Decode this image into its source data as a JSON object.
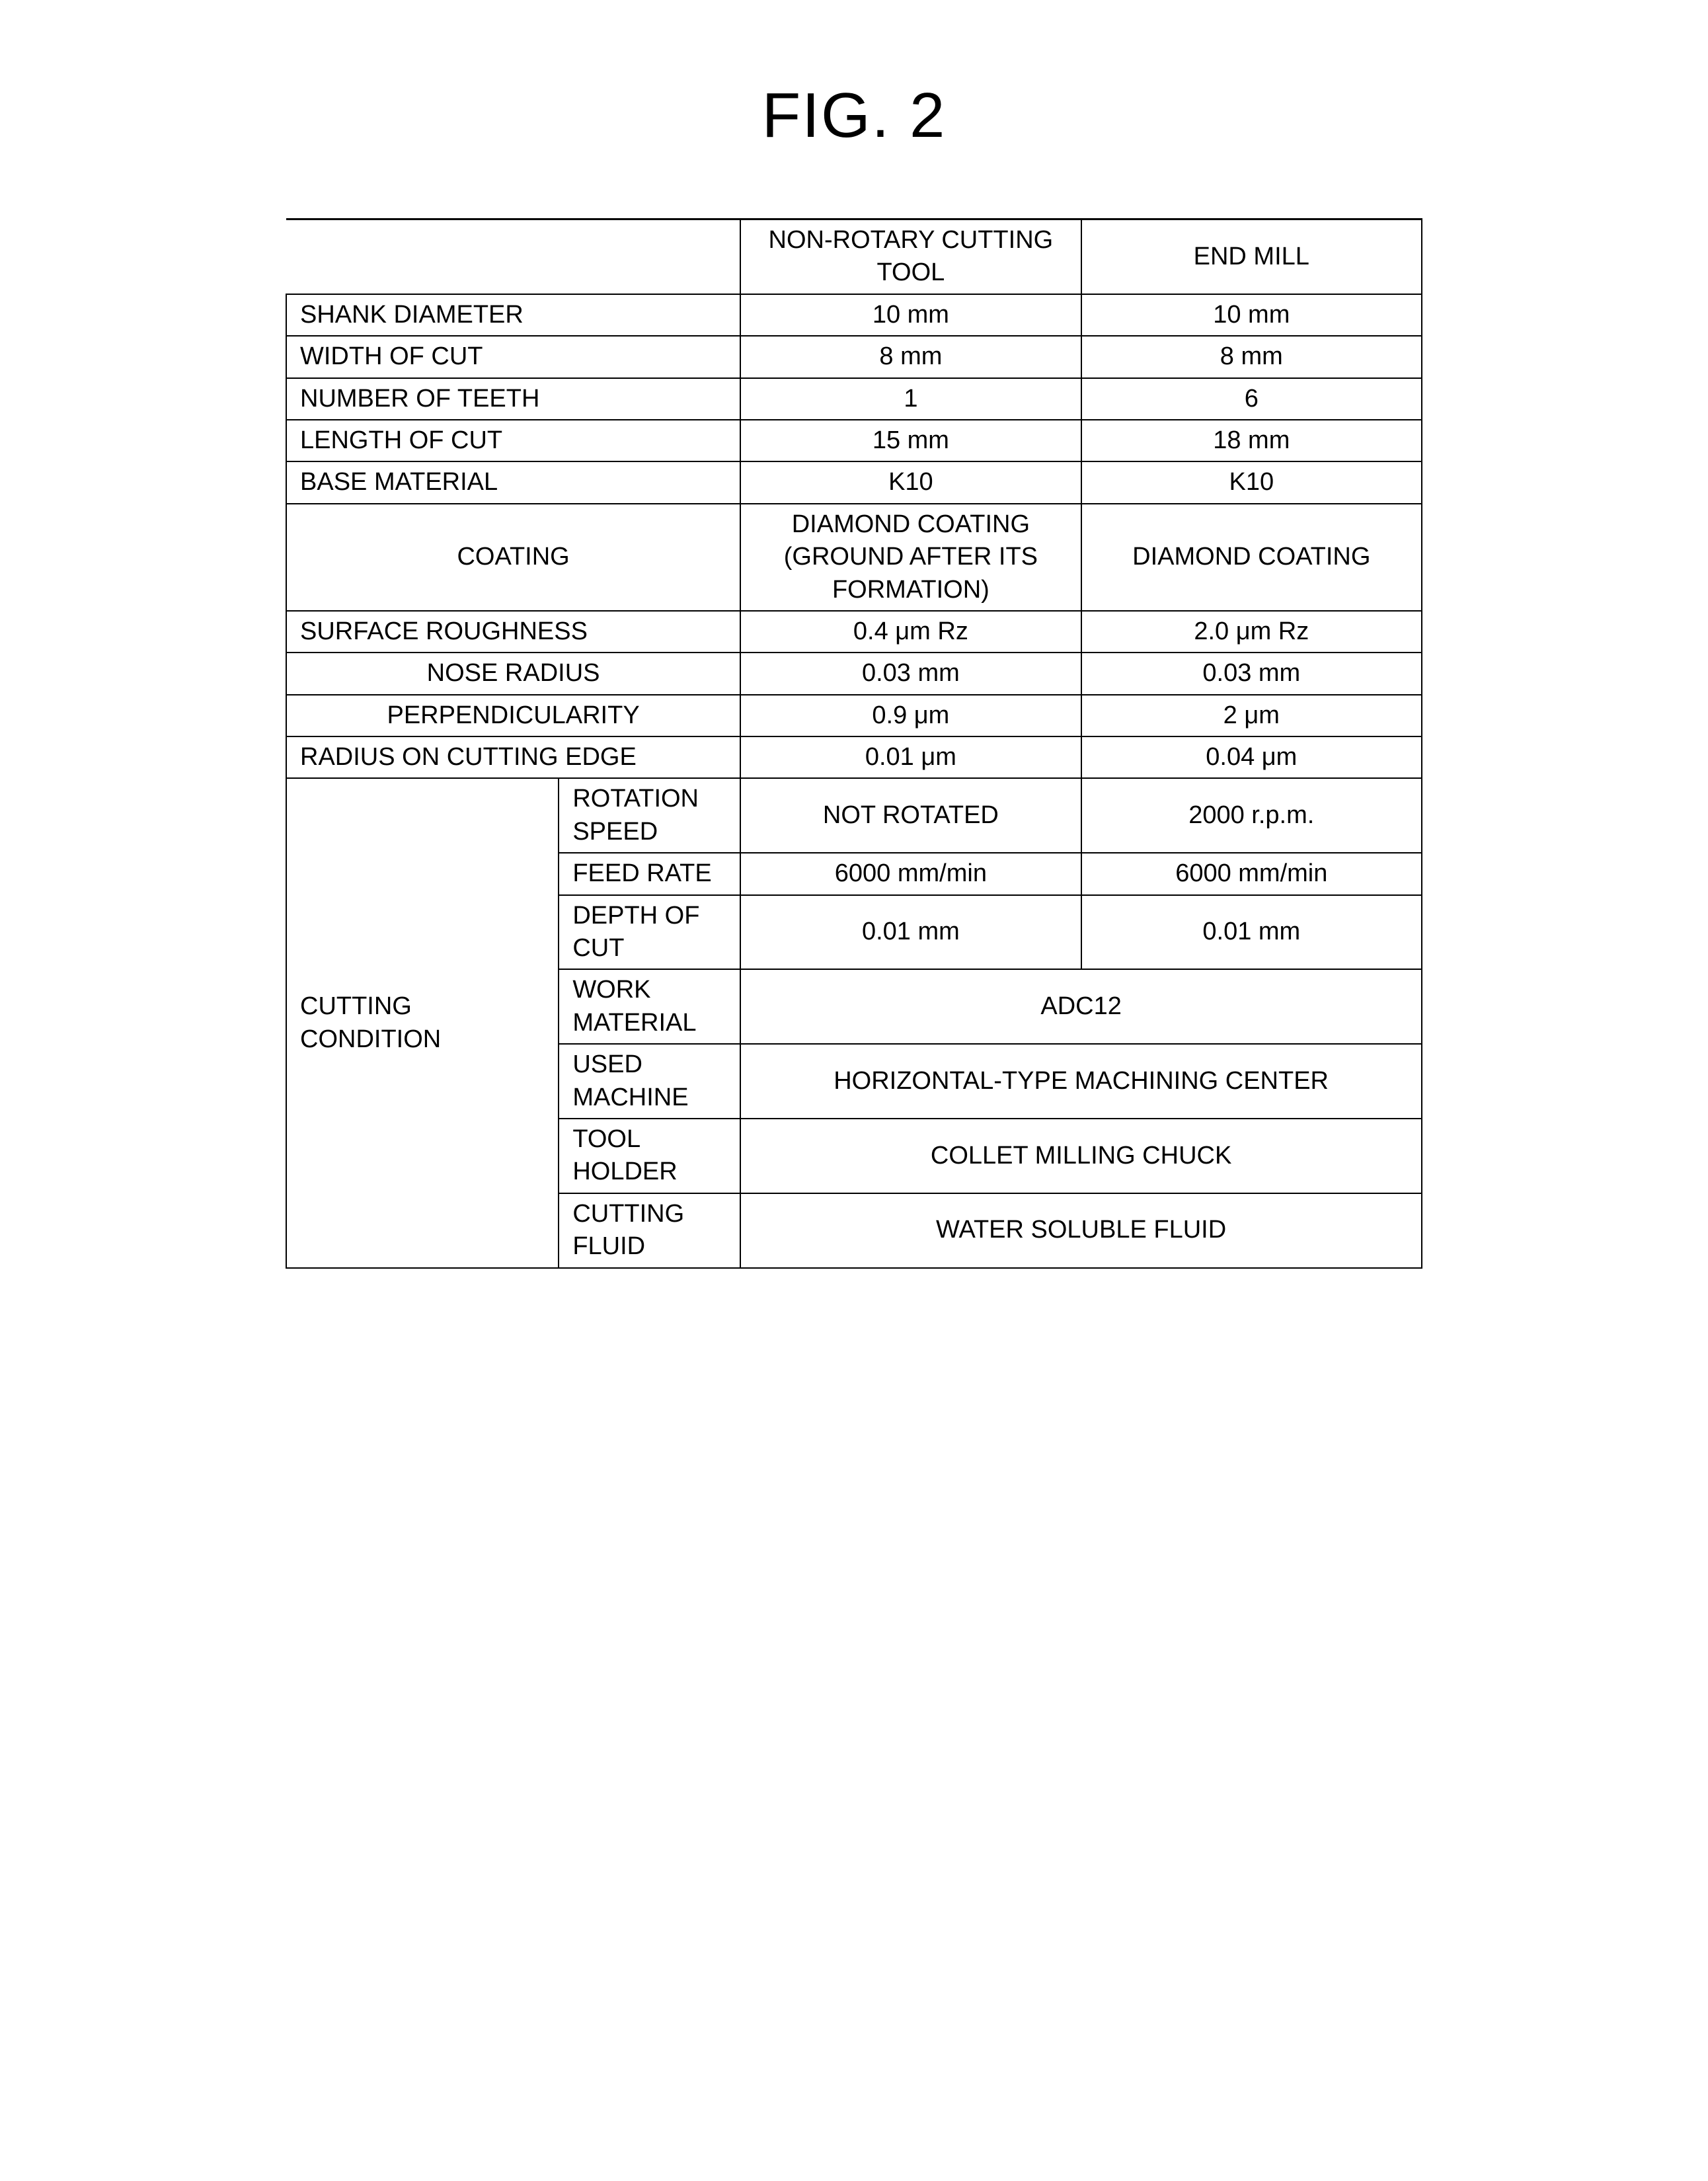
{
  "title": "FIG. 2",
  "table": {
    "headers": {
      "blank": "",
      "col1": "NON-ROTARY CUTTING TOOL",
      "col2": "END MILL"
    },
    "rows": {
      "shank_diameter": {
        "label": "SHANK DIAMETER",
        "v1": "10 mm",
        "v2": "10 mm"
      },
      "width_of_cut": {
        "label": "WIDTH OF CUT",
        "v1": "8 mm",
        "v2": "8 mm"
      },
      "number_of_teeth": {
        "label": "NUMBER OF TEETH",
        "v1": "1",
        "v2": "6"
      },
      "length_of_cut": {
        "label": "LENGTH OF CUT",
        "v1": "15 mm",
        "v2": "18 mm"
      },
      "base_material": {
        "label": "BASE MATERIAL",
        "v1": "K10",
        "v2": "K10"
      },
      "coating": {
        "label": "COATING",
        "v1": "DIAMOND COATING (GROUND AFTER ITS FORMATION)",
        "v2": "DIAMOND COATING"
      },
      "surface_roughness": {
        "label": "SURFACE ROUGHNESS",
        "v1": "0.4 μm Rz",
        "v2": "2.0 μm Rz"
      },
      "nose_radius": {
        "label": "NOSE RADIUS",
        "v1": "0.03 mm",
        "v2": "0.03 mm"
      },
      "perpendicularity": {
        "label": "PERPENDICULARITY",
        "v1": "0.9 μm",
        "v2": "2 μm"
      },
      "radius_on_cutting_edge": {
        "label": "RADIUS ON CUTTING EDGE",
        "v1": "0.01 μm",
        "v2": "0.04 μm"
      }
    },
    "cutting_condition": {
      "label": "CUTTING CONDITION",
      "rotation_speed": {
        "label": "ROTATION SPEED",
        "v1": "NOT ROTATED",
        "v2": "2000 r.p.m."
      },
      "feed_rate": {
        "label": "FEED RATE",
        "v1": "6000 mm/min",
        "v2": "6000 mm/min"
      },
      "depth_of_cut": {
        "label": "DEPTH OF CUT",
        "v1": "0.01 mm",
        "v2": "0.01 mm"
      },
      "work_material": {
        "label": "WORK MATERIAL",
        "merged": "ADC12"
      },
      "used_machine": {
        "label": "USED MACHINE",
        "merged": "HORIZONTAL-TYPE MACHINING CENTER"
      },
      "tool_holder": {
        "label": "TOOL HOLDER",
        "merged": "COLLET MILLING CHUCK"
      },
      "cutting_fluid": {
        "label": "CUTTING FLUID",
        "merged": "WATER SOLUBLE FLUID"
      }
    }
  },
  "styles": {
    "title_fontsize": 96,
    "table_fontsize": 38,
    "border_color": "#000000",
    "background_color": "#ffffff",
    "text_color": "#000000"
  }
}
